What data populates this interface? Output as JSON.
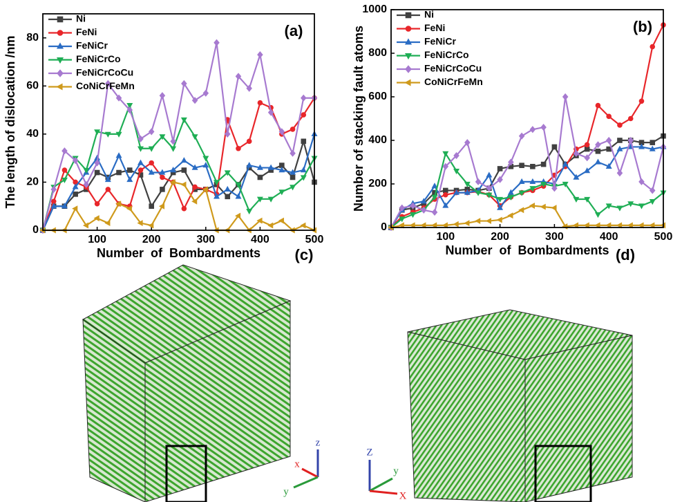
{
  "chart_data": [
    {
      "type": "line",
      "panel_label": "(a)",
      "xlabel": "Number  of  Bombardments",
      "ylabel": "The length of dislocation /nm",
      "x": [
        0,
        20,
        40,
        60,
        80,
        100,
        120,
        140,
        160,
        180,
        200,
        220,
        240,
        260,
        280,
        300,
        320,
        340,
        360,
        380,
        400,
        420,
        440,
        460,
        480,
        500
      ],
      "xlim": [
        0,
        500
      ],
      "xticks": [
        100,
        200,
        300,
        400,
        500
      ],
      "ylim": [
        0,
        90
      ],
      "yticks": [
        0,
        20,
        40,
        60,
        80
      ],
      "legend": "upper left",
      "series": [
        {
          "name": "Ni",
          "color": "#404040",
          "marker": "square",
          "values": [
            0,
            10,
            10,
            15,
            17,
            24,
            22,
            24,
            25,
            23,
            10,
            17,
            24,
            25,
            17,
            17,
            19,
            14,
            19,
            26,
            22,
            25,
            27,
            22,
            37,
            20
          ]
        },
        {
          "name": "FeNi",
          "color": "#e8262a",
          "marker": "circle",
          "values": [
            0,
            12,
            25,
            20,
            18,
            11,
            17,
            11,
            10,
            25,
            28,
            22,
            20,
            9,
            18,
            17,
            15,
            46,
            34,
            37,
            53,
            51,
            40,
            42,
            48,
            55
          ]
        },
        {
          "name": "FeNiCr",
          "color": "#2a6cc4",
          "marker": "triangle-up",
          "values": [
            0,
            10,
            10,
            18,
            24,
            30,
            21,
            31,
            21,
            28,
            24,
            24,
            25,
            29,
            26,
            27,
            14,
            17,
            14,
            27,
            26,
            26,
            25,
            24,
            25,
            40
          ]
        },
        {
          "name": "FeNiCrCo",
          "color": "#1fae55",
          "marker": "triangle-down",
          "values": [
            0,
            18,
            21,
            30,
            25,
            41,
            40,
            40,
            52,
            34,
            34,
            39,
            34,
            46,
            39,
            30,
            20,
            24,
            19,
            8,
            13,
            13,
            16,
            18,
            22,
            30
          ]
        },
        {
          "name": "FeNiCrCoCu",
          "color": "#a77ad0",
          "marker": "diamond",
          "values": [
            0,
            17,
            33,
            29,
            19,
            28,
            61,
            55,
            50,
            38,
            41,
            56,
            37,
            61,
            54,
            57,
            78,
            40,
            64,
            59,
            73,
            49,
            41,
            32,
            55,
            55
          ]
        },
        {
          "name": "CoNiCrFeMn",
          "color": "#cf9a1c",
          "marker": "triangle-left",
          "values": [
            0,
            0,
            0,
            9,
            2,
            5,
            3,
            11,
            9,
            3,
            2,
            10,
            20,
            19,
            12,
            17,
            0,
            0,
            6,
            0,
            4,
            2,
            4,
            0,
            2,
            0
          ]
        }
      ]
    },
    {
      "type": "line",
      "panel_label": "(b)",
      "xlabel": "Number  of  Bombardments",
      "ylabel": "Number of stacking fault atoms",
      "x": [
        0,
        20,
        40,
        60,
        80,
        100,
        120,
        140,
        160,
        180,
        200,
        220,
        240,
        260,
        280,
        300,
        320,
        340,
        360,
        380,
        400,
        420,
        440,
        460,
        480,
        500
      ],
      "xlim": [
        0,
        500
      ],
      "xticks": [
        100,
        200,
        300,
        400,
        500
      ],
      "ylim": [
        0,
        1000
      ],
      "yticks": [
        0,
        200,
        400,
        600,
        800,
        1000
      ],
      "legend": "upper left",
      "series": [
        {
          "name": "Ni",
          "color": "#404040",
          "marker": "square",
          "values": [
            0,
            80,
            90,
            110,
            160,
            170,
            170,
            175,
            170,
            180,
            270,
            280,
            285,
            280,
            290,
            370,
            290,
            330,
            360,
            350,
            360,
            400,
            400,
            390,
            390,
            420
          ]
        },
        {
          "name": "FeNi",
          "color": "#e8262a",
          "marker": "circle",
          "values": [
            0,
            50,
            70,
            90,
            130,
            150,
            160,
            160,
            165,
            150,
            100,
            140,
            160,
            170,
            190,
            240,
            280,
            360,
            380,
            560,
            510,
            470,
            500,
            580,
            830,
            930
          ]
        },
        {
          "name": "FeNiCr",
          "color": "#2a6cc4",
          "marker": "triangle-up",
          "values": [
            0,
            80,
            110,
            120,
            190,
            100,
            160,
            160,
            170,
            240,
            90,
            160,
            210,
            210,
            210,
            200,
            290,
            230,
            260,
            300,
            280,
            360,
            370,
            370,
            360,
            370
          ]
        },
        {
          "name": "FeNiCrCo",
          "color": "#1fae55",
          "marker": "triangle-down",
          "values": [
            0,
            40,
            60,
            80,
            140,
            340,
            260,
            200,
            160,
            150,
            130,
            140,
            160,
            180,
            200,
            190,
            200,
            130,
            130,
            60,
            100,
            90,
            110,
            100,
            120,
            160
          ]
        },
        {
          "name": "FeNiCrCoCu",
          "color": "#a77ad0",
          "marker": "diamond",
          "values": [
            0,
            90,
            100,
            80,
            70,
            280,
            330,
            390,
            210,
            180,
            220,
            300,
            420,
            450,
            460,
            180,
            600,
            340,
            320,
            380,
            400,
            250,
            400,
            210,
            170,
            370
          ]
        },
        {
          "name": "CoNiCrFeMn",
          "color": "#cf9a1c",
          "marker": "triangle-left",
          "values": [
            0,
            10,
            10,
            10,
            10,
            10,
            15,
            20,
            30,
            30,
            35,
            55,
            80,
            100,
            95,
            90,
            5,
            10,
            10,
            10,
            10,
            10,
            10,
            10,
            10,
            10
          ]
        }
      ]
    }
  ],
  "images": [
    {
      "panel_label": "(c)",
      "axis_labels": {
        "x": "x",
        "y": "y",
        "z": "z"
      }
    },
    {
      "panel_label": "(d)",
      "axis_labels": {
        "x": "X",
        "y": "y",
        "z": "Z"
      }
    }
  ]
}
